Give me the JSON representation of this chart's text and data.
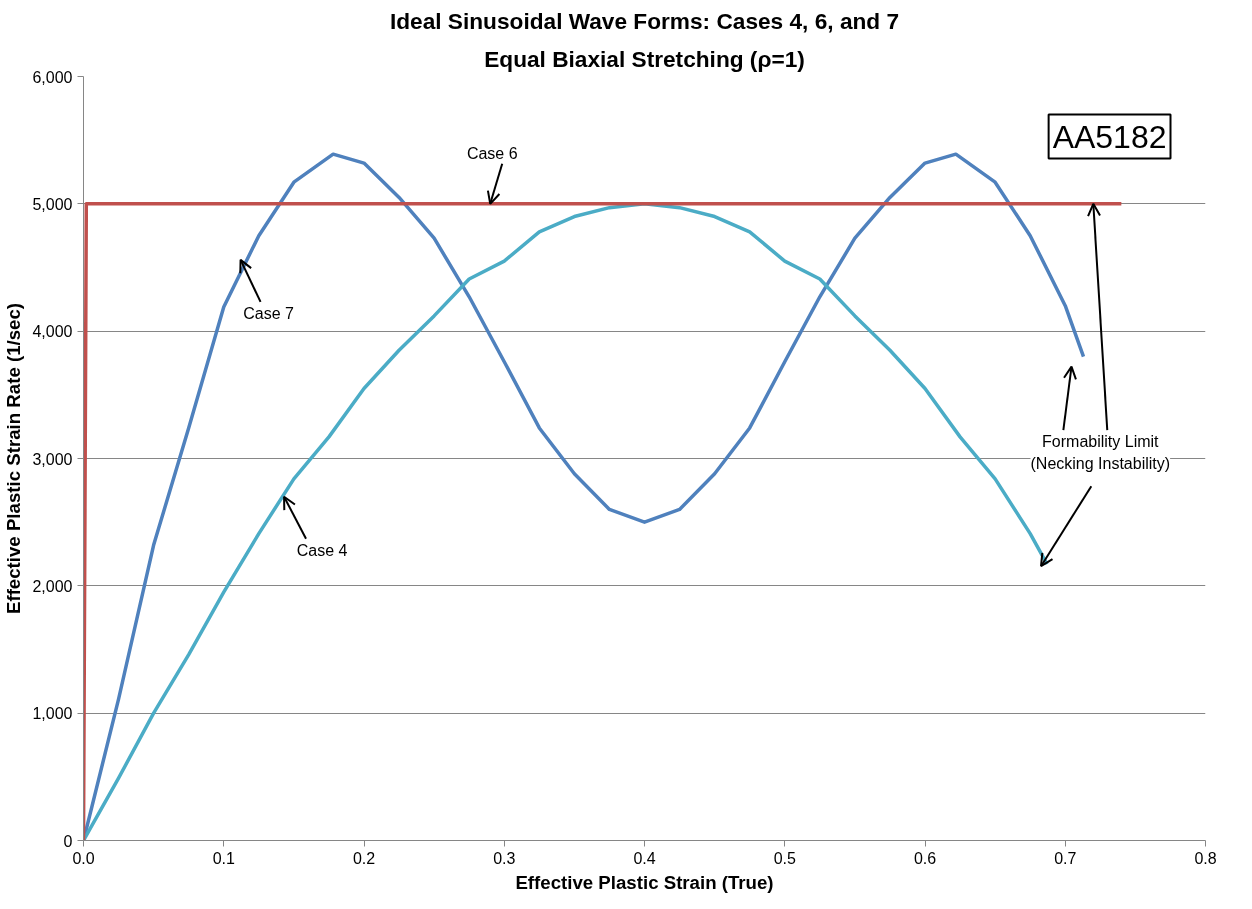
{
  "chart_data": {
    "type": "line",
    "title": "Ideal Sinusoidal Wave Forms: Cases 4, 6, and 7",
    "subtitle": "Equal Biaxial Stretching (ρ=1)",
    "xlabel": "Effective Plastic Strain (True)",
    "ylabel": "Effective Plastic Strain Rate (1/sec)",
    "xlim": [
      0,
      0.8
    ],
    "xticks": [
      {
        "value": 0,
        "label": "0.0"
      },
      0.1,
      0.2,
      0.3,
      0.4,
      0.5,
      0.6,
      0.7,
      0.8
    ],
    "ylim": [
      0,
      6000
    ],
    "yticks": [
      0,
      {
        "value": 1000,
        "label": "1,000"
      },
      {
        "value": 2000,
        "label": "2,000"
      },
      {
        "value": 3000,
        "label": "3,000"
      },
      {
        "value": 4000,
        "label": "4,000"
      },
      {
        "value": 5000,
        "label": "5,000"
      },
      {
        "value": 6000,
        "label": "6,000"
      }
    ],
    "grid": "y",
    "marker": "none",
    "line_style": "solid",
    "series": [
      {
        "color": "#4f81bd",
        "x": [
          0,
          0.025,
          0.05,
          0.075,
          0.1,
          0.125,
          0.15,
          0.178,
          0.2,
          0.225,
          0.25,
          0.275,
          0.3,
          0.325,
          0.35,
          0.375,
          0.4,
          0.425,
          0.45,
          0.475,
          0.5,
          0.525,
          0.55,
          0.575,
          0.6,
          0.622,
          0.65,
          0.675,
          0.7,
          0.713
        ],
        "values": [
          0,
          1110,
          2320,
          3240,
          4190,
          4750,
          5170,
          5390,
          5320,
          5050,
          4730,
          4270,
          3760,
          3240,
          2880,
          2600,
          2500,
          2600,
          2880,
          3240,
          3760,
          4270,
          4730,
          5050,
          5320,
          5390,
          5170,
          4750,
          4200,
          3800
        ]
      },
      {
        "color": "#4bacc6",
        "x": [
          0,
          0.025,
          0.05,
          0.075,
          0.1,
          0.125,
          0.15,
          0.175,
          0.2,
          0.225,
          0.25,
          0.275,
          0.3,
          0.325,
          0.35,
          0.375,
          0.4,
          0.425,
          0.45,
          0.475,
          0.5,
          0.525,
          0.55,
          0.575,
          0.6,
          0.625,
          0.65,
          0.675,
          0.687
        ],
        "values": [
          0,
          490,
          1000,
          1460,
          1950,
          2410,
          2840,
          3170,
          3550,
          3850,
          4120,
          4410,
          4550,
          4780,
          4900,
          4970,
          5000,
          4970,
          4900,
          4780,
          4550,
          4410,
          4120,
          3850,
          3550,
          3170,
          2840,
          2410,
          2170
        ]
      },
      {
        "color": "#c0504d",
        "x": [
          0,
          0.002,
          0.74
        ],
        "values": [
          0,
          5000,
          5000
        ]
      }
    ],
    "annotations": [
      {
        "text": "Case 6",
        "x": 0.29,
        "y": 5000
      },
      {
        "text": "Case 7",
        "x": 0.112,
        "y": 4560
      },
      {
        "text": "Case 4",
        "x": 0.143,
        "y": 2700
      },
      {
        "text": "Formability Limit\n(Necking Instability)",
        "x": 0.72,
        "y": 5000
      },
      "AA5182"
    ]
  }
}
